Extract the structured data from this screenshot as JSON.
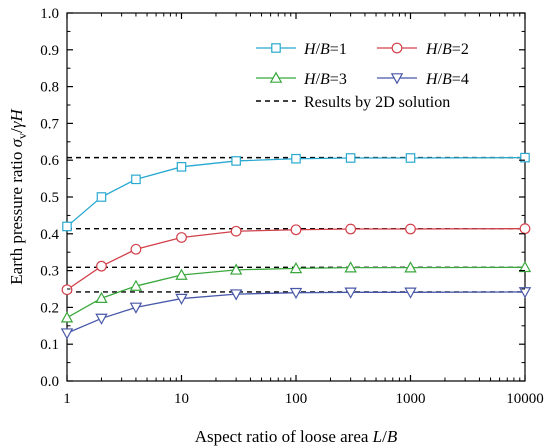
{
  "chart_data": {
    "type": "line",
    "xscale": "log",
    "xlim": [
      1,
      10000
    ],
    "ylim": [
      0.0,
      1.0
    ],
    "xticks": [
      "1",
      "10",
      "100",
      "1000",
      "10000"
    ],
    "xtick_values": [
      1,
      10,
      100,
      1000,
      10000
    ],
    "yticks": [
      "0.0",
      "0.1",
      "0.2",
      "0.3",
      "0.4",
      "0.5",
      "0.6",
      "0.7",
      "0.8",
      "0.9",
      "1.0"
    ],
    "ytick_values": [
      0.0,
      0.1,
      0.2,
      0.3,
      0.4,
      0.5,
      0.6,
      0.7,
      0.8,
      0.9,
      1.0
    ],
    "xlabel": {
      "text": "Aspect ratio of loose area",
      "var": "L/B"
    },
    "ylabel": {
      "text": "Earth pressure ratio",
      "var": "σv/γH"
    },
    "legend_position": "top-right",
    "grid": false,
    "series": [
      {
        "name": "H/B=1",
        "color": "#29a8d0",
        "marker": "square",
        "x": [
          1,
          2,
          4,
          10,
          30,
          100,
          300,
          1000,
          10000
        ],
        "y": [
          0.42,
          0.5,
          0.548,
          0.582,
          0.598,
          0.604,
          0.606,
          0.606,
          0.607
        ]
      },
      {
        "name": "H/B=2",
        "color": "#d2404a",
        "marker": "circle",
        "x": [
          1,
          2,
          4,
          10,
          30,
          100,
          300,
          1000,
          10000
        ],
        "y": [
          0.248,
          0.312,
          0.358,
          0.39,
          0.407,
          0.411,
          0.413,
          0.413,
          0.414
        ]
      },
      {
        "name": "H/B=3",
        "color": "#3aa83c",
        "marker": "triangle-up",
        "x": [
          1,
          2,
          4,
          10,
          30,
          100,
          300,
          1000,
          10000
        ],
        "y": [
          0.172,
          0.225,
          0.258,
          0.288,
          0.302,
          0.306,
          0.308,
          0.308,
          0.309
        ]
      },
      {
        "name": "H/B=4",
        "color": "#4858a8",
        "marker": "triangle-down",
        "x": [
          1,
          2,
          4,
          10,
          30,
          100,
          300,
          1000,
          10000
        ],
        "y": [
          0.13,
          0.17,
          0.2,
          0.224,
          0.236,
          0.24,
          0.241,
          0.241,
          0.242
        ]
      }
    ],
    "reference_lines": {
      "name": "Results by 2D solution",
      "color": "#000000",
      "style": "dashed",
      "y": [
        0.607,
        0.414,
        0.309,
        0.242
      ]
    }
  }
}
